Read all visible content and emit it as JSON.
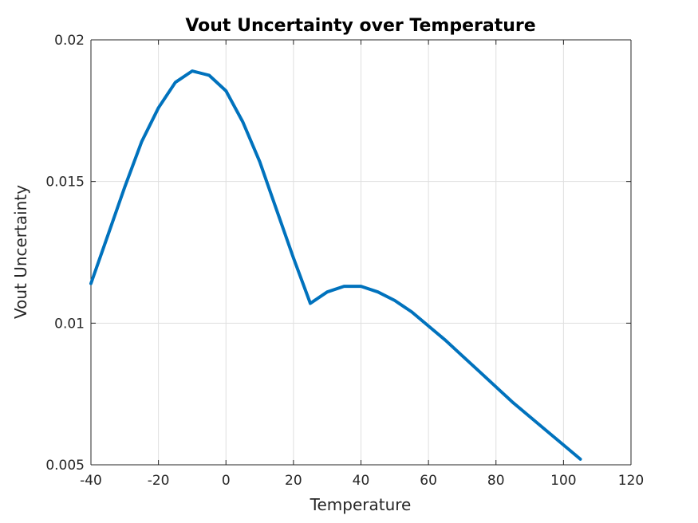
{
  "chart_data": {
    "type": "line",
    "title": "Vout Uncertainty over Temperature",
    "xlabel": "Temperature",
    "ylabel": "Vout Uncertainty",
    "xlim": [
      -40,
      120
    ],
    "ylim": [
      0.005,
      0.02
    ],
    "xticks": [
      "-40",
      "-20",
      "0",
      "20",
      "40",
      "60",
      "80",
      "100",
      "120"
    ],
    "yticks": [
      "0.005",
      "0.01",
      "0.015",
      "0.02"
    ],
    "grid": true,
    "series": [
      {
        "color": "#0072BD",
        "x": [
          -40,
          -35,
          -30,
          -25,
          -20,
          -15,
          -10,
          -5,
          0,
          5,
          10,
          15,
          20,
          25,
          30,
          35,
          40,
          45,
          50,
          55,
          60,
          65,
          70,
          75,
          80,
          85,
          90,
          95,
          100,
          105
        ],
        "y": [
          0.0114,
          0.0131,
          0.0148,
          0.0164,
          0.0176,
          0.0185,
          0.0189,
          0.01875,
          0.0182,
          0.0171,
          0.0157,
          0.014,
          0.0123,
          0.0107,
          0.0111,
          0.0113,
          0.0113,
          0.0111,
          0.0108,
          0.0104,
          0.0099,
          0.0094,
          0.00885,
          0.0083,
          0.00775,
          0.0072,
          0.0067,
          0.0062,
          0.0057,
          0.0052
        ]
      }
    ]
  }
}
